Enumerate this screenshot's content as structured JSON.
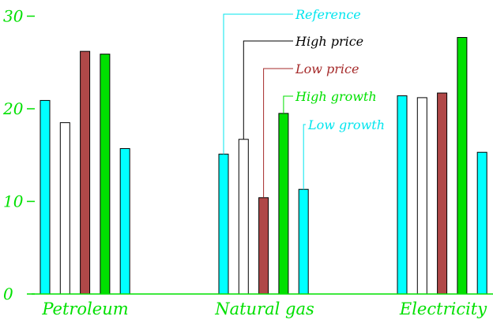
{
  "chart_data": {
    "type": "bar",
    "categories": [
      "Petroleum",
      "Natural gas",
      "Electricity"
    ],
    "series": [
      {
        "name": "Reference",
        "color": "#00ffff",
        "values": [
          20.9,
          15.1,
          21.4
        ]
      },
      {
        "name": "High price",
        "color": "#ffffff",
        "values": [
          18.5,
          16.7,
          21.2
        ]
      },
      {
        "name": "Low price",
        "color": "#b04848",
        "values": [
          26.2,
          10.4,
          21.7
        ]
      },
      {
        "name": "High growth",
        "color": "#00e000",
        "values": [
          25.9,
          19.5,
          27.7
        ]
      },
      {
        "name": "Low growth",
        "color": "#00ffff",
        "values": [
          15.7,
          11.3,
          15.3
        ]
      }
    ],
    "yticks": [
      {
        "value": 0,
        "label": "0"
      },
      {
        "value": 10,
        "label": "10"
      },
      {
        "value": 20,
        "label": "20"
      },
      {
        "value": 30,
        "label": "30"
      }
    ],
    "ylim": [
      0,
      30
    ],
    "legend": {
      "placement": "callouts-on-middle-group",
      "label_colors": [
        "#00e5ee",
        "#000000",
        "#a52a2a",
        "#00e000",
        "#00e5ee"
      ]
    },
    "colors": {
      "axis": "#00e000",
      "tick_text": "#00e000",
      "category_text": "#00e000",
      "bar_outline": "#000000"
    }
  }
}
